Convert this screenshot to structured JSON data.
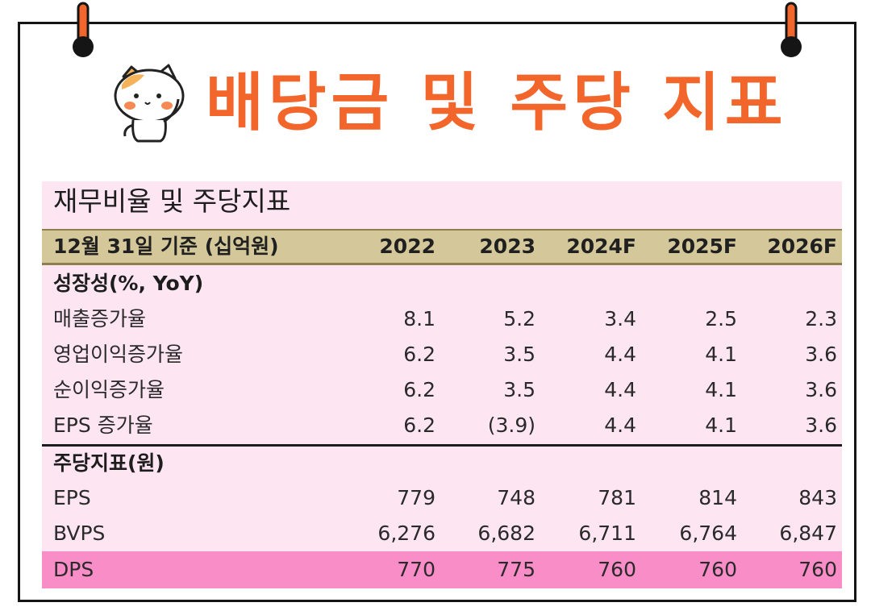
{
  "page": {
    "heading": "배당금 및 주당 지표"
  },
  "colors": {
    "accent_orange": "#f2662b",
    "panel_pink": "#fde6f2",
    "header_khaki": "#d4c89a",
    "highlight_pink": "#f98dc8"
  },
  "table": {
    "title": "재무비율 및 주당지표",
    "header": {
      "label": "12월 31일 기준 (십억원)",
      "years": [
        "2022",
        "2023",
        "2024F",
        "2025F",
        "2026F"
      ]
    },
    "sections": [
      {
        "label": "성장성(%, YoY)",
        "rows": [
          {
            "label": "매출증가율",
            "values": [
              "8.1",
              "5.2",
              "3.4",
              "2.5",
              "2.3"
            ]
          },
          {
            "label": "영업이익증가율",
            "values": [
              "6.2",
              "3.5",
              "4.4",
              "4.1",
              "3.6"
            ]
          },
          {
            "label": "순이익증가율",
            "values": [
              "6.2",
              "3.5",
              "4.4",
              "4.1",
              "3.6"
            ]
          },
          {
            "label": "EPS 증가율",
            "values": [
              "6.2",
              "(3.9)",
              "4.4",
              "4.1",
              "3.6"
            ]
          }
        ]
      },
      {
        "label": "주당지표(원)",
        "rows": [
          {
            "label": "EPS",
            "values": [
              "779",
              "748",
              "781",
              "814",
              "843"
            ]
          },
          {
            "label": "BVPS",
            "values": [
              "6,276",
              "6,682",
              "6,711",
              "6,764",
              "6,847"
            ]
          },
          {
            "label": "DPS",
            "values": [
              "770",
              "775",
              "760",
              "760",
              "760"
            ]
          }
        ]
      }
    ]
  }
}
